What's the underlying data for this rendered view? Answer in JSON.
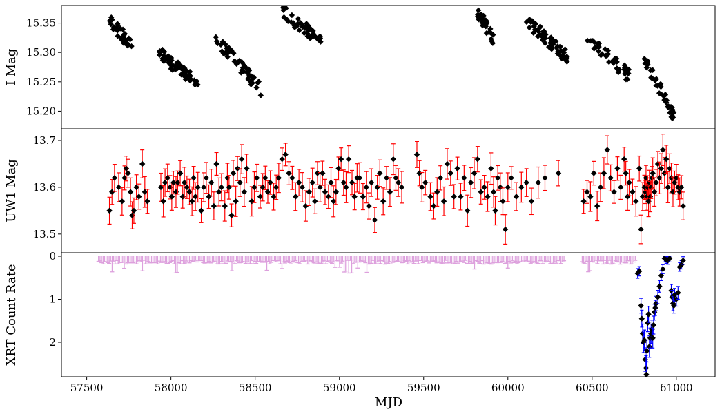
{
  "chart_data": {
    "type": "scatter",
    "x_axis": {
      "label": "MJD",
      "range": [
        57350,
        61230
      ],
      "ticks": [
        57500,
        58000,
        58500,
        59000,
        59500,
        60000,
        60500,
        61000
      ],
      "tick_labels": [
        "57500",
        "58000",
        "58500",
        "59000",
        "59500",
        "60000",
        "60500",
        "61000"
      ]
    },
    "panels": [
      {
        "ylabel": "I Mag",
        "y_inverted": true,
        "yrange": [
          15.38,
          15.17
        ],
        "yticks": [
          15.2,
          15.25,
          15.3,
          15.35
        ],
        "ytick_labels": [
          "15.20",
          "15.25",
          "15.30",
          "15.35"
        ],
        "marker_color": "#000000",
        "marker": "diamond",
        "season_clusters": [
          {
            "x_range": [
              57620,
              57770
            ],
            "y_range": [
              15.36,
              15.31
            ],
            "n": 32
          },
          {
            "x_range": [
              57930,
              58160
            ],
            "y_range": [
              15.3,
              15.245
            ],
            "n": 55
          },
          {
            "x_range": [
              58260,
              58540
            ],
            "y_range": [
              15.325,
              15.235
            ],
            "n": 50
          },
          {
            "x_range": [
              58660,
              58890
            ],
            "y_range": [
              15.37,
              15.32
            ],
            "n": 45
          },
          {
            "x_range": [
              57830,
              57920
            ],
            "y_range": [
              15.37,
              15.33
            ],
            "n": 0
          },
          {
            "x_range": [
              59820,
              59920
            ],
            "y_range": [
              15.37,
              15.32
            ],
            "n": 32
          },
          {
            "x_range": [
              60110,
              60360
            ],
            "y_range": [
              15.355,
              15.29
            ],
            "n": 60
          },
          {
            "x_range": [
              60470,
              60720
            ],
            "y_range": [
              15.325,
              15.26
            ],
            "n": 45
          },
          {
            "x_range": [
              60810,
              60990
            ],
            "y_range": [
              15.29,
              15.19
            ],
            "n": 40
          }
        ]
      },
      {
        "ylabel": "UW1 Mag",
        "y_inverted": true,
        "yrange": [
          13.725,
          13.46
        ],
        "yticks": [
          13.5,
          13.6,
          13.7
        ],
        "ytick_labels": [
          "13.5",
          "13.6",
          "13.7"
        ],
        "marker_color": "#000000",
        "errorbar_color": "#ff0000",
        "marker": "diamond",
        "points": [
          [
            57635,
            13.55
          ],
          [
            57650,
            13.59
          ],
          [
            57665,
            13.62
          ],
          [
            57690,
            13.6
          ],
          [
            57710,
            13.57
          ],
          [
            57725,
            13.62
          ],
          [
            57735,
            13.64
          ],
          [
            57745,
            13.63
          ],
          [
            57760,
            13.59
          ],
          [
            57770,
            13.54
          ],
          [
            57780,
            13.55
          ],
          [
            57795,
            13.6
          ],
          [
            57810,
            13.58
          ],
          [
            57830,
            13.65
          ],
          [
            57845,
            13.59
          ],
          [
            57860,
            13.57
          ],
          [
            57940,
            13.6
          ],
          [
            57955,
            13.57
          ],
          [
            57965,
            13.61
          ],
          [
            57980,
            13.62
          ],
          [
            57995,
            13.6
          ],
          [
            58005,
            13.58
          ],
          [
            58015,
            13.61
          ],
          [
            58030,
            13.59
          ],
          [
            58040,
            13.61
          ],
          [
            58055,
            13.63
          ],
          [
            58070,
            13.58
          ],
          [
            58080,
            13.61
          ],
          [
            58095,
            13.6
          ],
          [
            58110,
            13.59
          ],
          [
            58125,
            13.57
          ],
          [
            58135,
            13.62
          ],
          [
            58145,
            13.58
          ],
          [
            58160,
            13.6
          ],
          [
            58180,
            13.55
          ],
          [
            58195,
            13.6
          ],
          [
            58210,
            13.62
          ],
          [
            58225,
            13.58
          ],
          [
            58240,
            13.61
          ],
          [
            58255,
            13.56
          ],
          [
            58270,
            13.65
          ],
          [
            58285,
            13.59
          ],
          [
            58300,
            13.6
          ],
          [
            58320,
            13.56
          ],
          [
            58335,
            13.62
          ],
          [
            58345,
            13.6
          ],
          [
            58360,
            13.54
          ],
          [
            58370,
            13.63
          ],
          [
            58385,
            13.57
          ],
          [
            58395,
            13.64
          ],
          [
            58410,
            13.61
          ],
          [
            58420,
            13.66
          ],
          [
            58435,
            13.59
          ],
          [
            58450,
            13.64
          ],
          [
            58480,
            13.57
          ],
          [
            58495,
            13.6
          ],
          [
            58510,
            13.62
          ],
          [
            58530,
            13.58
          ],
          [
            58545,
            13.6
          ],
          [
            58560,
            13.62
          ],
          [
            58575,
            13.59
          ],
          [
            58590,
            13.61
          ],
          [
            58610,
            13.58
          ],
          [
            58625,
            13.6
          ],
          [
            58640,
            13.62
          ],
          [
            58660,
            13.66
          ],
          [
            58680,
            13.67
          ],
          [
            58700,
            13.63
          ],
          [
            58720,
            13.62
          ],
          [
            58740,
            13.58
          ],
          [
            58760,
            13.61
          ],
          [
            58780,
            13.6
          ],
          [
            58800,
            13.56
          ],
          [
            58820,
            13.59
          ],
          [
            58840,
            13.61
          ],
          [
            58855,
            13.57
          ],
          [
            58870,
            13.63
          ],
          [
            58885,
            13.6
          ],
          [
            58900,
            13.63
          ],
          [
            58915,
            13.59
          ],
          [
            58935,
            13.58
          ],
          [
            58950,
            13.61
          ],
          [
            58965,
            13.57
          ],
          [
            58980,
            13.59
          ],
          [
            58995,
            13.64
          ],
          [
            59010,
            13.66
          ],
          [
            59025,
            13.61
          ],
          [
            59040,
            13.6
          ],
          [
            59055,
            13.66
          ],
          [
            59075,
            13.61
          ],
          [
            59090,
            13.58
          ],
          [
            59105,
            13.62
          ],
          [
            59120,
            13.62
          ],
          [
            59140,
            13.58
          ],
          [
            59160,
            13.6
          ],
          [
            59175,
            13.56
          ],
          [
            59190,
            13.61
          ],
          [
            59210,
            13.53
          ],
          [
            59225,
            13.6
          ],
          [
            59240,
            13.63
          ],
          [
            59260,
            13.57
          ],
          [
            59280,
            13.62
          ],
          [
            59300,
            13.59
          ],
          [
            59320,
            13.66
          ],
          [
            59335,
            13.62
          ],
          [
            59350,
            13.61
          ],
          [
            59370,
            13.6
          ],
          [
            59460,
            13.67
          ],
          [
            59475,
            13.63
          ],
          [
            59490,
            13.6
          ],
          [
            59510,
            13.61
          ],
          [
            59540,
            13.58
          ],
          [
            59560,
            13.56
          ],
          [
            59580,
            13.59
          ],
          [
            59600,
            13.62
          ],
          [
            59620,
            13.57
          ],
          [
            59640,
            13.65
          ],
          [
            59660,
            13.63
          ],
          [
            59680,
            13.58
          ],
          [
            59700,
            13.64
          ],
          [
            59720,
            13.58
          ],
          [
            59740,
            13.62
          ],
          [
            59760,
            13.55
          ],
          [
            59780,
            13.61
          ],
          [
            59800,
            13.63
          ],
          [
            59820,
            13.66
          ],
          [
            59840,
            13.59
          ],
          [
            59860,
            13.6
          ],
          [
            59880,
            13.58
          ],
          [
            59900,
            13.64
          ],
          [
            59915,
            13.59
          ],
          [
            59925,
            13.55
          ],
          [
            59940,
            13.62
          ],
          [
            59955,
            13.6
          ],
          [
            59970,
            13.57
          ],
          [
            59985,
            13.51
          ],
          [
            60000,
            13.6
          ],
          [
            60020,
            13.62
          ],
          [
            60050,
            13.58
          ],
          [
            60080,
            13.6
          ],
          [
            60110,
            13.61
          ],
          [
            60140,
            13.57
          ],
          [
            60180,
            13.61
          ],
          [
            60220,
            13.62
          ],
          [
            60300,
            13.63
          ],
          [
            60450,
            13.57
          ],
          [
            60470,
            13.59
          ],
          [
            60490,
            13.58
          ],
          [
            60510,
            13.63
          ],
          [
            60530,
            13.56
          ],
          [
            60550,
            13.6
          ],
          [
            60570,
            13.63
          ],
          [
            60590,
            13.68
          ],
          [
            60610,
            13.62
          ],
          [
            60630,
            13.59
          ],
          [
            60650,
            13.64
          ],
          [
            60670,
            13.6
          ],
          [
            60690,
            13.66
          ],
          [
            60700,
            13.63
          ],
          [
            60710,
            13.58
          ],
          [
            60720,
            13.61
          ],
          [
            60740,
            13.59
          ],
          [
            60760,
            13.57
          ],
          [
            60780,
            13.64
          ],
          [
            60790,
            13.51
          ],
          [
            60800,
            13.58
          ],
          [
            60810,
            13.6
          ],
          [
            60815,
            13.59
          ],
          [
            60820,
            13.62
          ],
          [
            60825,
            13.58
          ],
          [
            60830,
            13.6
          ],
          [
            60835,
            13.57
          ],
          [
            60840,
            13.61
          ],
          [
            60845,
            13.58
          ],
          [
            60850,
            13.6
          ],
          [
            60855,
            13.62
          ],
          [
            60860,
            13.63
          ],
          [
            60870,
            13.59
          ],
          [
            60880,
            13.61
          ],
          [
            60890,
            13.65
          ],
          [
            60900,
            13.62
          ],
          [
            60910,
            13.64
          ],
          [
            60920,
            13.68
          ],
          [
            60930,
            13.63
          ],
          [
            60940,
            13.66
          ],
          [
            60950,
            13.6
          ],
          [
            60960,
            13.64
          ],
          [
            60970,
            13.62
          ],
          [
            60980,
            13.59
          ],
          [
            60990,
            13.61
          ],
          [
            61000,
            13.62
          ],
          [
            61010,
            13.6
          ],
          [
            61020,
            13.59
          ],
          [
            61030,
            13.6
          ],
          [
            61040,
            13.56
          ]
        ]
      },
      {
        "ylabel": "XRT Count Rate",
        "y_inverted": false,
        "yrange": [
          -0.08,
          2.8
        ],
        "yticks": [
          0,
          1,
          2
        ],
        "ytick_labels": [
          "0",
          "1",
          "2"
        ],
        "marker_color": "#000000",
        "errorbar_color": "#0000ff",
        "upper_limit_color": "#dda0dd",
        "upper_limits": {
          "x_range": [
            57570,
            60760
          ],
          "typical_value": 0.15,
          "max_value": 0.4
        },
        "detections": [
          [
            60770,
            0.4
          ],
          [
            60780,
            0.35
          ],
          [
            60790,
            1.15
          ],
          [
            60795,
            1.45
          ],
          [
            60800,
            1.8
          ],
          [
            60805,
            2.0
          ],
          [
            60810,
            1.95
          ],
          [
            60815,
            2.4
          ],
          [
            60820,
            2.6
          ],
          [
            60822,
            2.75
          ],
          [
            60825,
            2.2
          ],
          [
            60830,
            1.55
          ],
          [
            60835,
            1.35
          ],
          [
            60840,
            2.1
          ],
          [
            60845,
            1.9
          ],
          [
            60850,
            1.8
          ],
          [
            60855,
            1.7
          ],
          [
            60860,
            1.9
          ],
          [
            60865,
            1.6
          ],
          [
            60870,
            1.3
          ],
          [
            60875,
            1.2
          ],
          [
            60880,
            1.1
          ],
          [
            60890,
            0.95
          ],
          [
            60900,
            0.7
          ],
          [
            60910,
            0.45
          ],
          [
            60920,
            0.3
          ],
          [
            60930,
            0.05
          ],
          [
            60940,
            0.08
          ],
          [
            60950,
            0.1
          ],
          [
            60960,
            0.05
          ],
          [
            60970,
            0.8
          ],
          [
            60975,
            0.95
          ],
          [
            60980,
            1.1
          ],
          [
            60985,
            1.15
          ],
          [
            60990,
            0.9
          ],
          [
            61000,
            1.0
          ],
          [
            61010,
            0.85
          ],
          [
            61020,
            0.25
          ],
          [
            61030,
            0.2
          ],
          [
            61040,
            0.1
          ]
        ]
      }
    ]
  }
}
